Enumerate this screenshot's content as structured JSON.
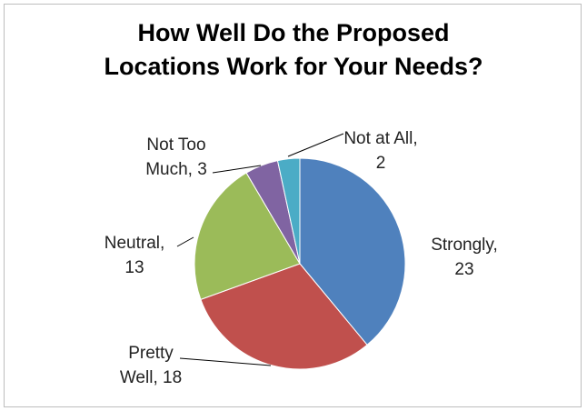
{
  "chart_data": {
    "type": "pie",
    "title_lines": [
      "How Well Do the Proposed",
      "Locations Work for Your Needs?"
    ],
    "slices": [
      {
        "label_lines": [
          "Strongly,",
          "23"
        ],
        "category": "Strongly",
        "value": 23,
        "color": "#4f81bd"
      },
      {
        "label_lines": [
          "Pretty",
          "Well, 18"
        ],
        "category": "Pretty Well",
        "value": 18,
        "color": "#c0504d"
      },
      {
        "label_lines": [
          "Neutral,",
          "13"
        ],
        "category": "Neutral",
        "value": 13,
        "color": "#9bbb59"
      },
      {
        "label_lines": [
          "Not Too",
          "Much, 3"
        ],
        "category": "Not Too Much",
        "value": 3,
        "color": "#8064a2"
      },
      {
        "label_lines": [
          "Not at All,",
          "2"
        ],
        "category": "Not at All",
        "value": 2,
        "color": "#4bacc6"
      }
    ],
    "legend": "none"
  }
}
